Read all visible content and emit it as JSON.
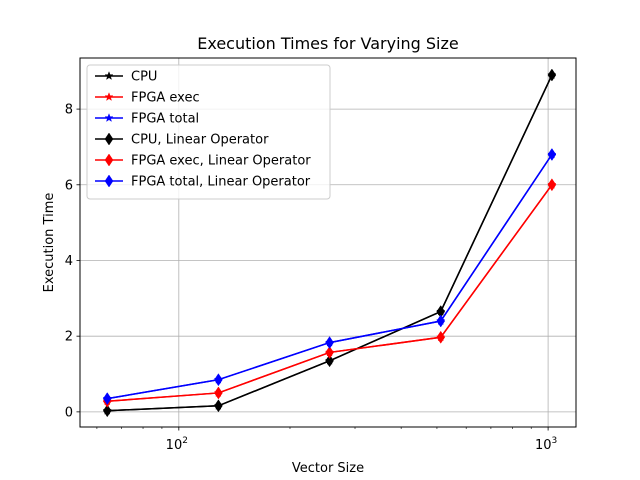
{
  "chart_data": {
    "type": "line",
    "title": "Execution Times for Varying Size",
    "xlabel": "Vector Size",
    "ylabel": "Execution Time",
    "xscale": "log",
    "xlim": [
      54,
      1190
    ],
    "ylim": [
      -0.4,
      9.35
    ],
    "xticks": [
      {
        "value": 100,
        "base": "10",
        "exp": "2"
      },
      {
        "value": 1000,
        "base": "10",
        "exp": "3"
      }
    ],
    "yticks": [
      0,
      2,
      4,
      6,
      8
    ],
    "grid": true,
    "legend_position": "upper-left",
    "x": [
      64,
      128,
      256,
      512,
      1024
    ],
    "series": [
      {
        "name": "CPU",
        "color": "#000000",
        "marker": "star",
        "values": [
          0.03,
          0.16,
          1.35,
          2.65,
          8.9
        ]
      },
      {
        "name": "FPGA exec",
        "color": "#ff0000",
        "marker": "star",
        "values": [
          0.28,
          0.5,
          1.57,
          1.97,
          6.0
        ]
      },
      {
        "name": "FPGA total",
        "color": "#0000ff",
        "marker": "star",
        "values": [
          0.35,
          0.85,
          1.83,
          2.4,
          6.8
        ]
      },
      {
        "name": "CPU, Linear Operator",
        "color": "#000000",
        "marker": "diamond",
        "values": [
          0.03,
          0.16,
          1.35,
          2.65,
          8.9
        ]
      },
      {
        "name": "FPGA exec, Linear Operator",
        "color": "#ff0000",
        "marker": "diamond",
        "values": [
          0.28,
          0.5,
          1.57,
          1.97,
          6.0
        ]
      },
      {
        "name": "FPGA total, Linear Operator",
        "color": "#0000ff",
        "marker": "diamond",
        "values": [
          0.35,
          0.85,
          1.83,
          2.4,
          6.8
        ]
      }
    ]
  }
}
